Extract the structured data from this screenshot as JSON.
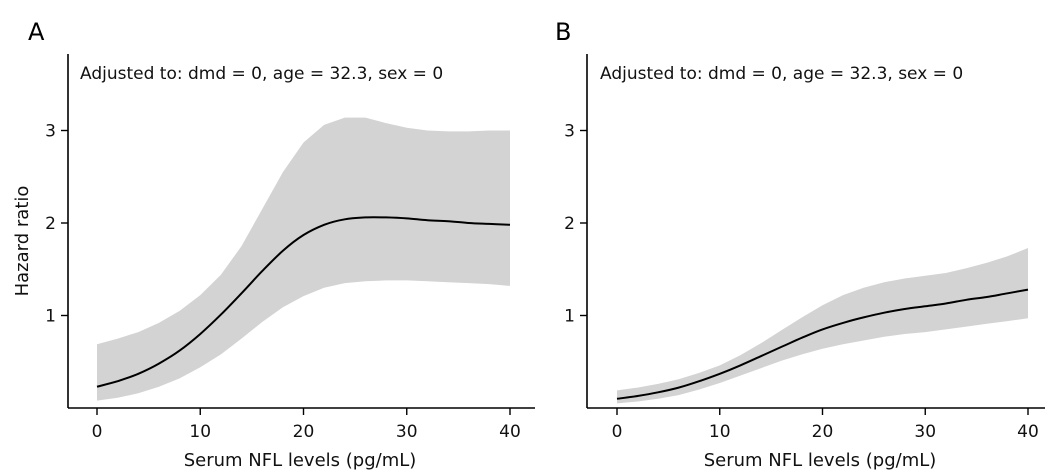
{
  "chart_data": [
    {
      "type": "line",
      "panel_label": "A",
      "annotation": "Adjusted to: dmd = 0, age = 32.3, sex = 0",
      "xlabel": "Serum NFL levels (pg/mL)",
      "ylabel": "Hazard ratio",
      "xlim": [
        0,
        40
      ],
      "ylim": [
        0,
        3.7
      ],
      "xticks": [
        0,
        10,
        20,
        30,
        40
      ],
      "yticks": [
        1,
        2,
        3
      ],
      "grid": false,
      "series": [
        {
          "x": [
            0,
            2,
            4,
            6,
            8,
            10,
            12,
            14,
            16,
            18,
            20,
            22,
            24,
            26,
            28,
            30,
            32,
            34,
            36,
            38,
            40
          ],
          "y": [
            0.23,
            0.29,
            0.37,
            0.48,
            0.62,
            0.8,
            1.01,
            1.24,
            1.48,
            1.7,
            1.87,
            1.98,
            2.04,
            2.06,
            2.06,
            2.05,
            2.03,
            2.02,
            2.0,
            1.99,
            1.98
          ],
          "lower": [
            0.08,
            0.11,
            0.16,
            0.23,
            0.32,
            0.44,
            0.58,
            0.75,
            0.93,
            1.09,
            1.21,
            1.3,
            1.35,
            1.37,
            1.38,
            1.38,
            1.37,
            1.36,
            1.35,
            1.34,
            1.32
          ],
          "upper": [
            0.69,
            0.75,
            0.82,
            0.92,
            1.05,
            1.22,
            1.44,
            1.75,
            2.15,
            2.55,
            2.87,
            3.06,
            3.14,
            3.14,
            3.08,
            3.03,
            3.0,
            2.99,
            2.99,
            3.0,
            3.0
          ]
        }
      ]
    },
    {
      "type": "line",
      "panel_label": "B",
      "annotation": "Adjusted to: dmd = 0, age = 32.3, sex = 0",
      "xlabel": "Serum NFL levels (pg/mL)",
      "ylabel": "",
      "xlim": [
        0,
        40
      ],
      "ylim": [
        0,
        3.7
      ],
      "xticks": [
        0,
        10,
        20,
        30,
        40
      ],
      "yticks": [
        1,
        2,
        3
      ],
      "grid": false,
      "series": [
        {
          "x": [
            0,
            2,
            4,
            6,
            8,
            10,
            12,
            14,
            16,
            18,
            20,
            22,
            24,
            26,
            28,
            30,
            32,
            34,
            36,
            38,
            40
          ],
          "y": [
            0.1,
            0.13,
            0.17,
            0.22,
            0.29,
            0.37,
            0.46,
            0.56,
            0.66,
            0.76,
            0.85,
            0.92,
            0.98,
            1.03,
            1.07,
            1.1,
            1.13,
            1.17,
            1.2,
            1.24,
            1.28
          ],
          "lower": [
            0.05,
            0.07,
            0.1,
            0.14,
            0.2,
            0.27,
            0.35,
            0.43,
            0.51,
            0.58,
            0.64,
            0.69,
            0.73,
            0.77,
            0.8,
            0.82,
            0.85,
            0.88,
            0.91,
            0.94,
            0.97
          ],
          "upper": [
            0.19,
            0.22,
            0.26,
            0.31,
            0.38,
            0.46,
            0.57,
            0.7,
            0.84,
            0.98,
            1.11,
            1.22,
            1.3,
            1.36,
            1.4,
            1.43,
            1.46,
            1.51,
            1.57,
            1.64,
            1.73
          ]
        }
      ]
    }
  ]
}
